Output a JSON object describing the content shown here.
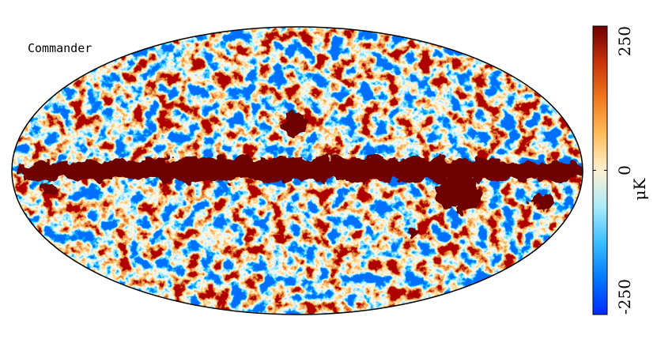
{
  "map": {
    "label": "Commander",
    "colorbar": {
      "min": -250,
      "max": 250,
      "ticks": [
        -250,
        0,
        250
      ],
      "unit": "μK"
    }
  }
}
